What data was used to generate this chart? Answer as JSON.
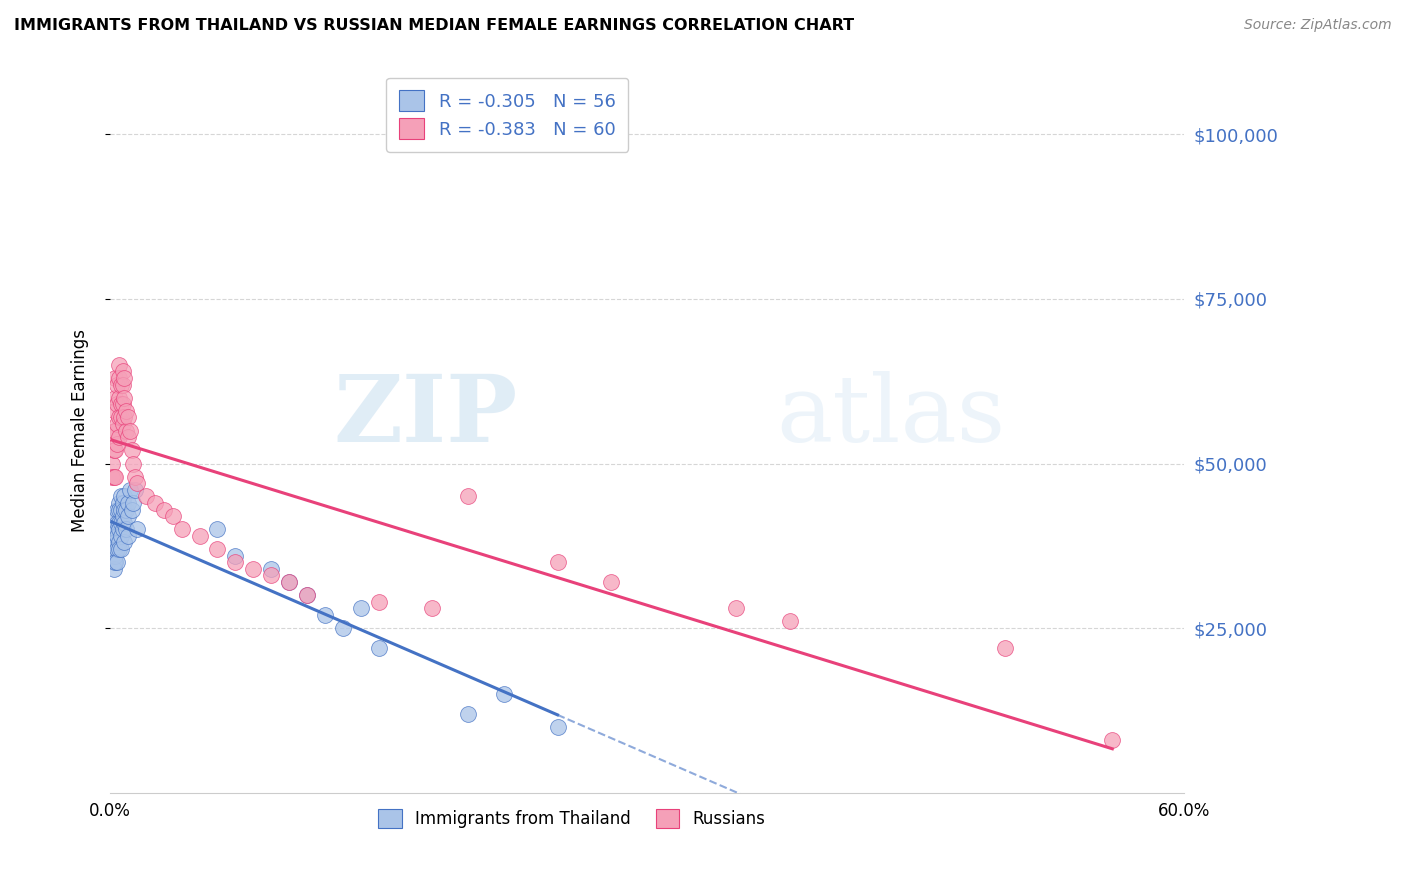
{
  "title": "IMMIGRANTS FROM THAILAND VS RUSSIAN MEDIAN FEMALE EARNINGS CORRELATION CHART",
  "source": "Source: ZipAtlas.com",
  "ylabel": "Median Female Earnings",
  "ytick_labels": [
    "$25,000",
    "$50,000",
    "$75,000",
    "$100,000"
  ],
  "ytick_values": [
    25000,
    50000,
    75000,
    100000
  ],
  "ymin": 0,
  "ymax": 110000,
  "xmin": 0.0,
  "xmax": 0.6,
  "legend_r1": "R = -0.305   N = 56",
  "legend_r2": "R = -0.383   N = 60",
  "color_thailand": "#aac4e8",
  "color_russian": "#f5a0b8",
  "color_line_thailand": "#4472c4",
  "color_line_russian": "#e8417a",
  "watermark_zip": "ZIP",
  "watermark_atlas": "atlas",
  "background_color": "#ffffff",
  "grid_color": "#cccccc",
  "thailand_x": [
    0.001,
    0.001,
    0.002,
    0.002,
    0.002,
    0.002,
    0.003,
    0.003,
    0.003,
    0.003,
    0.003,
    0.004,
    0.004,
    0.004,
    0.004,
    0.004,
    0.005,
    0.005,
    0.005,
    0.005,
    0.005,
    0.005,
    0.006,
    0.006,
    0.006,
    0.006,
    0.006,
    0.007,
    0.007,
    0.007,
    0.008,
    0.008,
    0.008,
    0.008,
    0.009,
    0.009,
    0.01,
    0.01,
    0.01,
    0.011,
    0.012,
    0.013,
    0.014,
    0.015,
    0.06,
    0.07,
    0.09,
    0.1,
    0.11,
    0.12,
    0.13,
    0.14,
    0.15,
    0.2,
    0.22,
    0.25
  ],
  "thailand_y": [
    38000,
    36000,
    40000,
    37000,
    35000,
    34000,
    42000,
    40000,
    38000,
    36000,
    35000,
    43000,
    41000,
    39000,
    37000,
    35000,
    44000,
    43000,
    41000,
    40000,
    38000,
    37000,
    45000,
    43000,
    41000,
    39000,
    37000,
    44000,
    42000,
    40000,
    45000,
    43000,
    41000,
    38000,
    43000,
    40000,
    44000,
    42000,
    39000,
    46000,
    43000,
    44000,
    46000,
    40000,
    40000,
    36000,
    34000,
    32000,
    30000,
    27000,
    25000,
    28000,
    22000,
    12000,
    15000,
    10000
  ],
  "russian_x": [
    0.001,
    0.001,
    0.002,
    0.002,
    0.002,
    0.003,
    0.003,
    0.003,
    0.003,
    0.003,
    0.003,
    0.004,
    0.004,
    0.004,
    0.004,
    0.005,
    0.005,
    0.005,
    0.005,
    0.005,
    0.006,
    0.006,
    0.006,
    0.007,
    0.007,
    0.007,
    0.007,
    0.008,
    0.008,
    0.008,
    0.009,
    0.009,
    0.01,
    0.01,
    0.011,
    0.012,
    0.013,
    0.014,
    0.015,
    0.02,
    0.025,
    0.03,
    0.035,
    0.04,
    0.05,
    0.06,
    0.07,
    0.08,
    0.09,
    0.1,
    0.11,
    0.15,
    0.18,
    0.2,
    0.25,
    0.28,
    0.35,
    0.38,
    0.5,
    0.56
  ],
  "russian_y": [
    50000,
    48000,
    55000,
    52000,
    48000,
    60000,
    63000,
    58000,
    55000,
    52000,
    48000,
    62000,
    59000,
    56000,
    53000,
    65000,
    63000,
    60000,
    57000,
    54000,
    62000,
    59000,
    57000,
    64000,
    62000,
    59000,
    56000,
    63000,
    60000,
    57000,
    58000,
    55000,
    57000,
    54000,
    55000,
    52000,
    50000,
    48000,
    47000,
    45000,
    44000,
    43000,
    42000,
    40000,
    39000,
    37000,
    35000,
    34000,
    33000,
    32000,
    30000,
    29000,
    28000,
    45000,
    35000,
    32000,
    28000,
    26000,
    22000,
    8000
  ]
}
